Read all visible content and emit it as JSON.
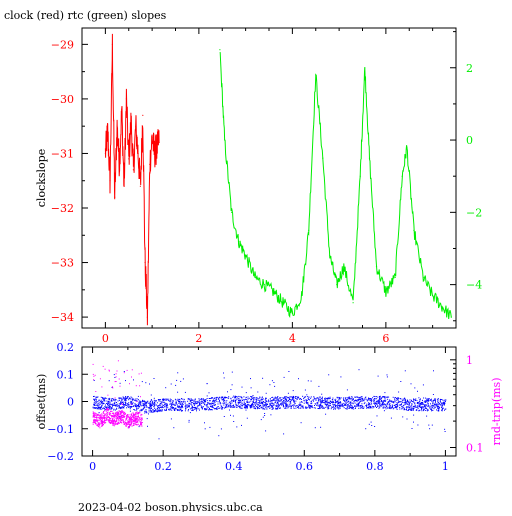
{
  "title": "clock (red) rtc (green) slopes",
  "footer": "2023-04-02  boson.physics.ubc.ca",
  "colors": {
    "red": "#ff0000",
    "green": "#00ee00",
    "blue": "#0000ff",
    "magenta": "#ff00ff",
    "axis": "#000000"
  },
  "chart_data": [
    {
      "type": "line",
      "ylabel": "clockslope",
      "y2label": "",
      "xlim": [
        -0.5,
        7.5
      ],
      "ylim": [
        -34.2,
        -28.7
      ],
      "y2lim": [
        -5.2,
        3.1
      ],
      "xticks": [
        0,
        2,
        4,
        6
      ],
      "yticks": [
        -34,
        -33,
        -32,
        -31,
        -30,
        -29
      ],
      "y2ticks": [
        -4,
        -2,
        0,
        2
      ],
      "series": [
        {
          "color": "red",
          "axis": "left",
          "x": [
            0.0,
            0.05,
            0.1,
            0.15,
            0.2,
            0.25,
            0.3,
            0.35,
            0.4,
            0.45,
            0.5,
            0.55,
            0.6,
            0.65,
            0.7,
            0.75,
            0.8,
            0.85,
            0.9,
            0.95,
            1.0,
            1.05,
            1.1,
            1.15
          ],
          "y": [
            -31.0,
            -30.6,
            -31.5,
            -29.0,
            -31.8,
            -30.5,
            -31.2,
            -30.2,
            -31.6,
            -30.0,
            -31.1,
            -30.4,
            -31.3,
            -30.5,
            -31.0,
            -31.6,
            -30.3,
            -33.0,
            -34.0,
            -31.2,
            -30.7,
            -31.0,
            -30.9,
            -30.8
          ]
        },
        {
          "color": "green",
          "axis": "right",
          "x": [
            2.45,
            2.55,
            2.7,
            2.85,
            3.0,
            3.2,
            3.4,
            3.6,
            3.8,
            4.0,
            4.2,
            4.35,
            4.5,
            4.65,
            4.8,
            4.95,
            5.1,
            5.3,
            5.45,
            5.55,
            5.65,
            5.8,
            6.0,
            6.2,
            6.35,
            6.45,
            6.6,
            6.8,
            7.0,
            7.2,
            7.4
          ],
          "y": [
            2.5,
            0.0,
            -2.0,
            -2.8,
            -3.2,
            -3.8,
            -4.0,
            -4.2,
            -4.5,
            -4.8,
            -4.3,
            -2.5,
            1.8,
            -0.5,
            -3.2,
            -4.0,
            -3.5,
            -4.5,
            -1.0,
            2.0,
            -0.5,
            -3.5,
            -4.2,
            -3.8,
            -1.0,
            -0.2,
            -2.5,
            -3.8,
            -4.3,
            -4.6,
            -4.9
          ]
        }
      ]
    },
    {
      "type": "scatter",
      "ylabel": "offset(ms)",
      "y2label": "rnd-trip(ms)",
      "xlim": [
        -0.03,
        1.03
      ],
      "ylim": [
        -0.2,
        0.2
      ],
      "y2lim": [
        0.08,
        1.4
      ],
      "xticks": [
        0,
        0.2,
        0.4,
        0.6,
        0.8,
        1
      ],
      "xticklabels": [
        "0",
        "0.2",
        "0.4",
        "0.6",
        "0.8",
        "1"
      ],
      "yticks": [
        -0.2,
        -0.1,
        0,
        0.1,
        0.2
      ],
      "yticklabels": [
        "−0.2",
        "−0.1",
        "0",
        "0.1",
        "0.2"
      ],
      "y2ticks": [
        0.1,
        1
      ],
      "y2ticklabels": [
        "0.1",
        "1"
      ],
      "series": [
        {
          "color": "blue",
          "axis": "left",
          "x": [
            0.0,
            0.05,
            0.1,
            0.15,
            0.2,
            0.3,
            0.4,
            0.5,
            0.6,
            0.7,
            0.8,
            0.9,
            1.0
          ],
          "y": [
            0.0,
            -0.01,
            0.0,
            -0.02,
            -0.01,
            -0.01,
            0.0,
            -0.005,
            0.0,
            -0.005,
            0.0,
            -0.01,
            -0.01
          ]
        },
        {
          "color": "magenta",
          "axis": "right",
          "x": [
            0.0,
            0.02,
            0.04,
            0.06,
            0.08,
            0.1,
            0.12,
            0.14
          ],
          "y": [
            0.22,
            0.2,
            0.24,
            0.21,
            0.23,
            0.2,
            0.22,
            0.21
          ]
        }
      ]
    }
  ]
}
